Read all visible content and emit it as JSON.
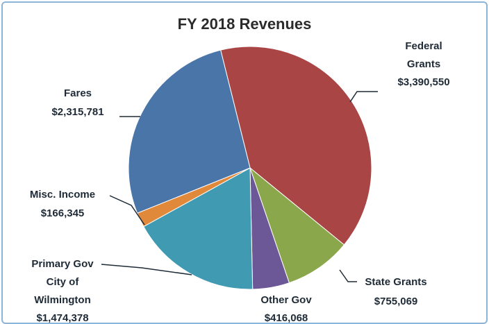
{
  "chart_data": {
    "type": "pie",
    "title": "FY 2018 Revenues",
    "categories": [
      "Federal\nGrants",
      "State Grants",
      "Other Gov",
      "Primary Gov\nCity of\nWilmington",
      "Misc. Income",
      "Fares"
    ],
    "values": [
      3390550,
      755069,
      416068,
      1474378,
      166345,
      2315781
    ],
    "value_labels": [
      "$3,390,550",
      "$755,069",
      "$416,068",
      "$1,474,378",
      "$166,345",
      "$2,315,781"
    ],
    "colors": [
      "#a94544",
      "#8aa74b",
      "#6c5797",
      "#3f9ab2",
      "#e1893b",
      "#4a75a9"
    ]
  }
}
